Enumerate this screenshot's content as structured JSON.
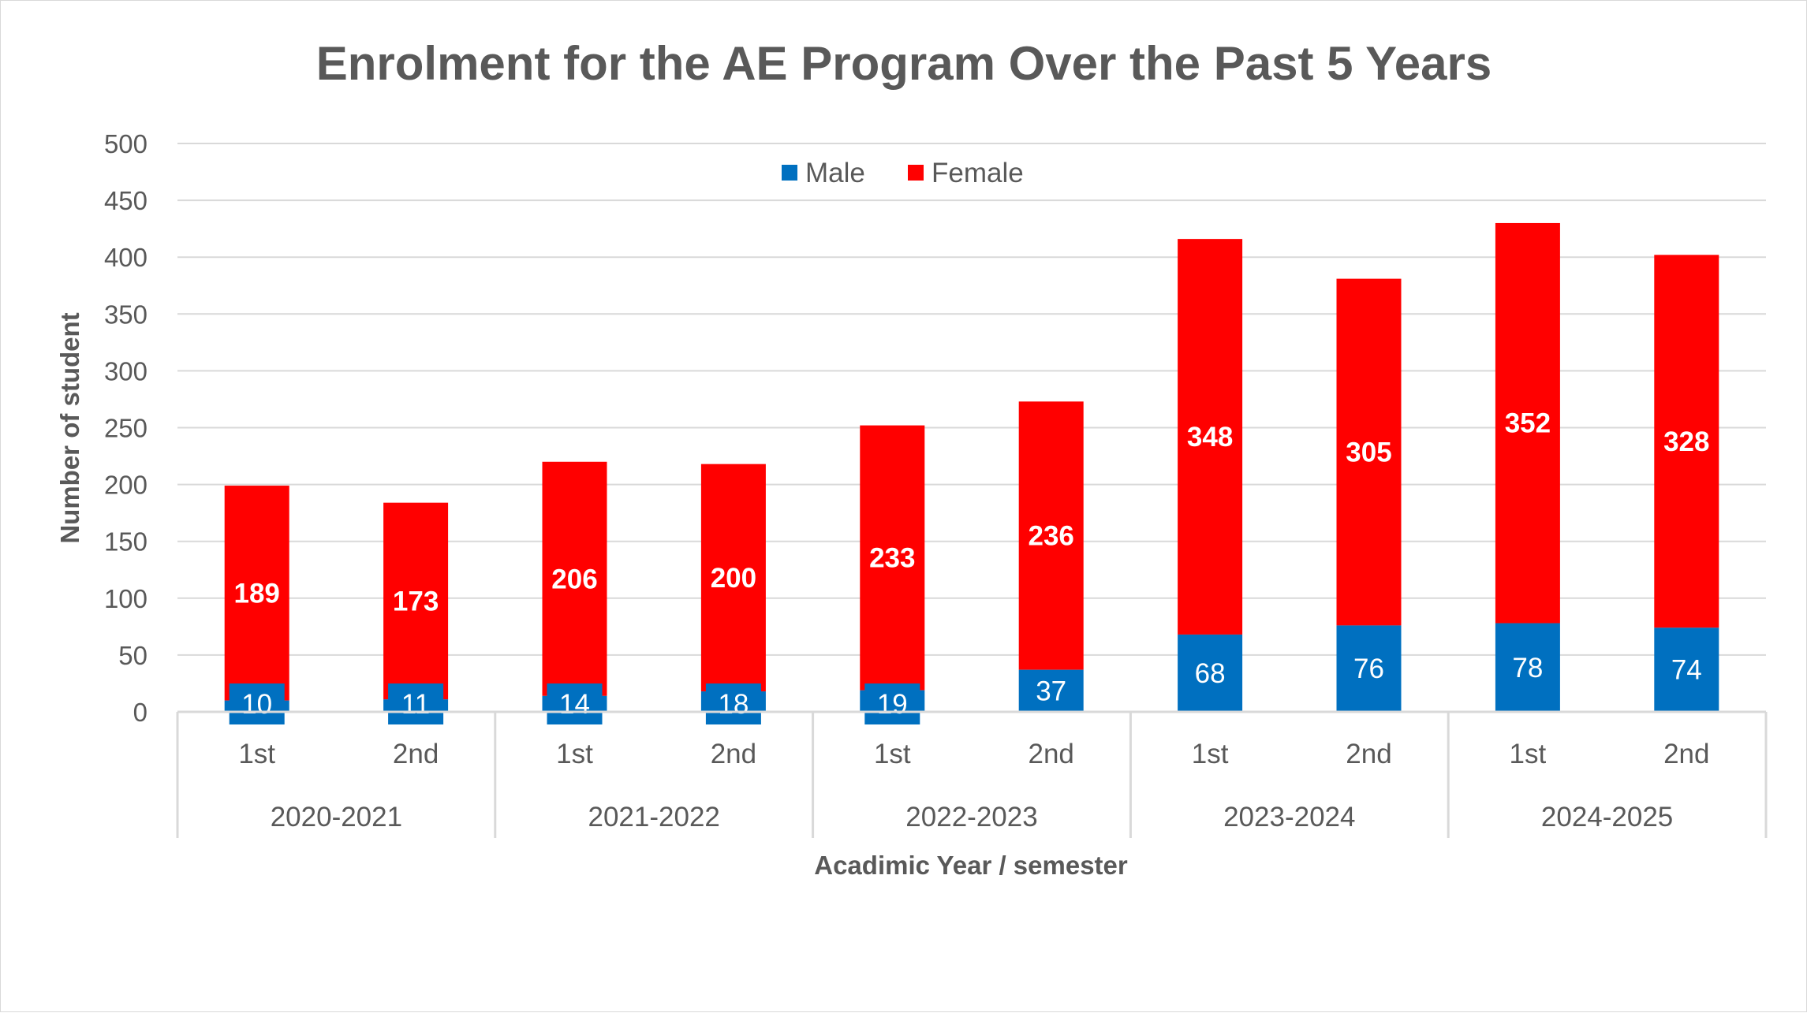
{
  "chart_data": {
    "type": "bar",
    "stacked": true,
    "title": "Enrolment for the AE Program Over the Past 5 Years",
    "xlabel": "Acadimic Year / semester",
    "ylabel": "Number of student",
    "ylim": [
      0,
      500
    ],
    "y_ticks": [
      "0",
      "50",
      "100",
      "150",
      "200",
      "250",
      "300",
      "350",
      "400",
      "450",
      "500"
    ],
    "grid": true,
    "legend_position": "top-center",
    "groups": [
      "2020-2021",
      "2021-2022",
      "2022-2023",
      "2023-2024",
      "2024-2025"
    ],
    "categories": [
      "1st",
      "2nd",
      "1st",
      "2nd",
      "1st",
      "2nd",
      "1st",
      "2nd",
      "1st",
      "2nd"
    ],
    "series": [
      {
        "name": "Male",
        "color": "#0070C0",
        "values": [
          10,
          11,
          14,
          18,
          19,
          37,
          68,
          76,
          78,
          74
        ]
      },
      {
        "name": "Female",
        "color": "#FF0000",
        "values": [
          189,
          173,
          206,
          200,
          233,
          236,
          348,
          305,
          352,
          328
        ]
      }
    ]
  }
}
